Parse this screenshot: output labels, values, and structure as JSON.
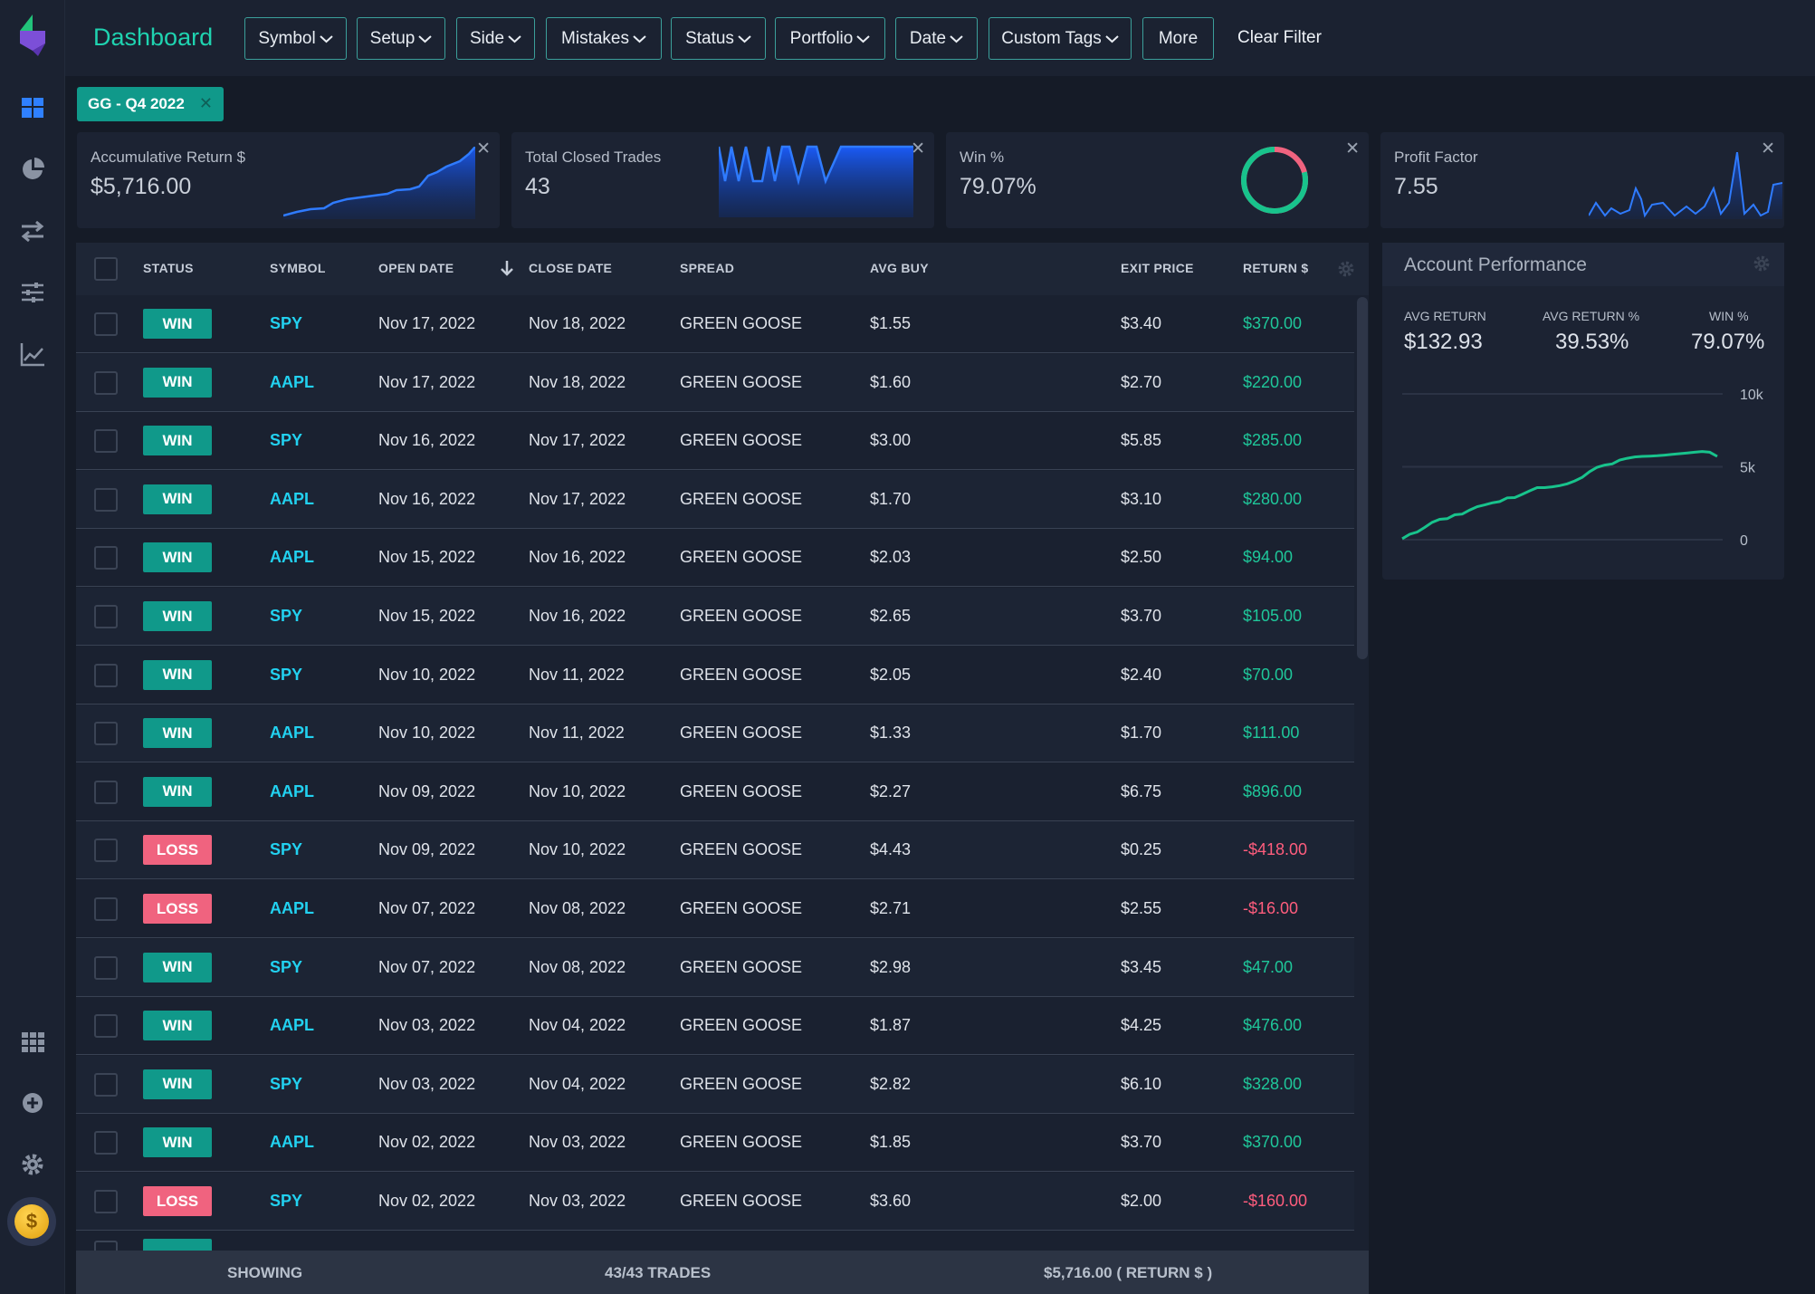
{
  "app": {
    "title": "Dashboard",
    "accent_color": "#1fd3b0"
  },
  "sidebar": {
    "items": [
      {
        "icon": "dashboard-grid-icon"
      },
      {
        "icon": "pie-chart-icon"
      },
      {
        "icon": "transfer-arrows-icon"
      },
      {
        "icon": "sliders-icon"
      },
      {
        "icon": "line-chart-icon"
      },
      {
        "icon": "apps-grid-icon"
      },
      {
        "icon": "plus-circle-icon"
      },
      {
        "icon": "gear-icon"
      }
    ],
    "coin_symbol": "$"
  },
  "filters": {
    "buttons": [
      "Symbol",
      "Setup",
      "Side",
      "Mistakes",
      "Status",
      "Portfolio",
      "Date",
      "Custom Tags"
    ],
    "more_label": "More",
    "clear_label": "Clear Filter"
  },
  "active_tag": {
    "label": "GG - Q4 2022",
    "close": "✕"
  },
  "cards": {
    "accum_return": {
      "title": "Accumulative Return $",
      "value": "$5,716.00",
      "close": "✕"
    },
    "closed_trades": {
      "title": "Total Closed Trades",
      "value": "43",
      "close": "✕"
    },
    "win_pct": {
      "title": "Win %",
      "value": "79.07%",
      "close": "✕",
      "win_fraction": 0.7907
    },
    "profit_factor": {
      "title": "Profit Factor",
      "value": "7.55",
      "close": "✕"
    }
  },
  "table": {
    "headers": {
      "status": "STATUS",
      "symbol": "SYMBOL",
      "open_date": "OPEN DATE",
      "close_date": "CLOSE DATE",
      "spread": "SPREAD",
      "avg_buy": "AVG BUY",
      "exit_price": "EXIT PRICE",
      "return": "RETURN $"
    },
    "rows": [
      {
        "status": "WIN",
        "symbol": "SPY",
        "open": "Nov 17, 2022",
        "close": "Nov 18, 2022",
        "spread": "GREEN GOOSE",
        "avg_buy": "$1.55",
        "exit": "$3.40",
        "ret": "$370.00"
      },
      {
        "status": "WIN",
        "symbol": "AAPL",
        "open": "Nov 17, 2022",
        "close": "Nov 18, 2022",
        "spread": "GREEN GOOSE",
        "avg_buy": "$1.60",
        "exit": "$2.70",
        "ret": "$220.00"
      },
      {
        "status": "WIN",
        "symbol": "SPY",
        "open": "Nov 16, 2022",
        "close": "Nov 17, 2022",
        "spread": "GREEN GOOSE",
        "avg_buy": "$3.00",
        "exit": "$5.85",
        "ret": "$285.00"
      },
      {
        "status": "WIN",
        "symbol": "AAPL",
        "open": "Nov 16, 2022",
        "close": "Nov 17, 2022",
        "spread": "GREEN GOOSE",
        "avg_buy": "$1.70",
        "exit": "$3.10",
        "ret": "$280.00"
      },
      {
        "status": "WIN",
        "symbol": "AAPL",
        "open": "Nov 15, 2022",
        "close": "Nov 16, 2022",
        "spread": "GREEN GOOSE",
        "avg_buy": "$2.03",
        "exit": "$2.50",
        "ret": "$94.00"
      },
      {
        "status": "WIN",
        "symbol": "SPY",
        "open": "Nov 15, 2022",
        "close": "Nov 16, 2022",
        "spread": "GREEN GOOSE",
        "avg_buy": "$2.65",
        "exit": "$3.70",
        "ret": "$105.00"
      },
      {
        "status": "WIN",
        "symbol": "SPY",
        "open": "Nov 10, 2022",
        "close": "Nov 11, 2022",
        "spread": "GREEN GOOSE",
        "avg_buy": "$2.05",
        "exit": "$2.40",
        "ret": "$70.00"
      },
      {
        "status": "WIN",
        "symbol": "AAPL",
        "open": "Nov 10, 2022",
        "close": "Nov 11, 2022",
        "spread": "GREEN GOOSE",
        "avg_buy": "$1.33",
        "exit": "$1.70",
        "ret": "$111.00"
      },
      {
        "status": "WIN",
        "symbol": "AAPL",
        "open": "Nov 09, 2022",
        "close": "Nov 10, 2022",
        "spread": "GREEN GOOSE",
        "avg_buy": "$2.27",
        "exit": "$6.75",
        "ret": "$896.00"
      },
      {
        "status": "LOSS",
        "symbol": "SPY",
        "open": "Nov 09, 2022",
        "close": "Nov 10, 2022",
        "spread": "GREEN GOOSE",
        "avg_buy": "$4.43",
        "exit": "$0.25",
        "ret": "-$418.00"
      },
      {
        "status": "LOSS",
        "symbol": "AAPL",
        "open": "Nov 07, 2022",
        "close": "Nov 08, 2022",
        "spread": "GREEN GOOSE",
        "avg_buy": "$2.71",
        "exit": "$2.55",
        "ret": "-$16.00"
      },
      {
        "status": "WIN",
        "symbol": "SPY",
        "open": "Nov 07, 2022",
        "close": "Nov 08, 2022",
        "spread": "GREEN GOOSE",
        "avg_buy": "$2.98",
        "exit": "$3.45",
        "ret": "$47.00"
      },
      {
        "status": "WIN",
        "symbol": "AAPL",
        "open": "Nov 03, 2022",
        "close": "Nov 04, 2022",
        "spread": "GREEN GOOSE",
        "avg_buy": "$1.87",
        "exit": "$4.25",
        "ret": "$476.00"
      },
      {
        "status": "WIN",
        "symbol": "SPY",
        "open": "Nov 03, 2022",
        "close": "Nov 04, 2022",
        "spread": "GREEN GOOSE",
        "avg_buy": "$2.82",
        "exit": "$6.10",
        "ret": "$328.00"
      },
      {
        "status": "WIN",
        "symbol": "AAPL",
        "open": "Nov 02, 2022",
        "close": "Nov 03, 2022",
        "spread": "GREEN GOOSE",
        "avg_buy": "$1.85",
        "exit": "$3.70",
        "ret": "$370.00"
      },
      {
        "status": "LOSS",
        "symbol": "SPY",
        "open": "Nov 02, 2022",
        "close": "Nov 03, 2022",
        "spread": "GREEN GOOSE",
        "avg_buy": "$3.60",
        "exit": "$2.00",
        "ret": "-$160.00"
      }
    ],
    "footer": {
      "showing": "SHOWING",
      "count": "43/43 TRADES",
      "total": "$5,716.00 ( RETURN $ )"
    },
    "colors": {
      "win": "#10998a",
      "loss": "#f0637f",
      "positive": "#1fc79a",
      "negative": "#ff5d7d",
      "symbol": "#22d1f0"
    }
  },
  "performance": {
    "title": "Account Performance",
    "stats": [
      {
        "label": "AVG RETURN",
        "value": "$132.93"
      },
      {
        "label": "AVG RETURN %",
        "value": "39.53%"
      },
      {
        "label": "WIN %",
        "value": "79.07%"
      }
    ]
  },
  "chart_data": [
    {
      "type": "line",
      "title": "",
      "ylim": [
        0,
        10000
      ],
      "yticks": [
        "10k",
        "5k",
        "0"
      ],
      "grid": true,
      "series": [
        {
          "values": [
            70,
            370,
            530,
            847,
            1191,
            1397,
            1442,
            1708,
            1760,
            2040,
            2266,
            2388,
            2530,
            2617,
            2870,
            2890,
            3112,
            3354,
            3570,
            3570,
            3630,
            3710,
            3830,
            4030,
            4280,
            4670,
            4966,
            5116,
            5198,
            5468,
            5586,
            5678,
            5716,
            5736,
            5760,
            5800,
            5850,
            5900,
            5950,
            6000,
            6050,
            6000,
            5716
          ]
        }
      ]
    }
  ]
}
